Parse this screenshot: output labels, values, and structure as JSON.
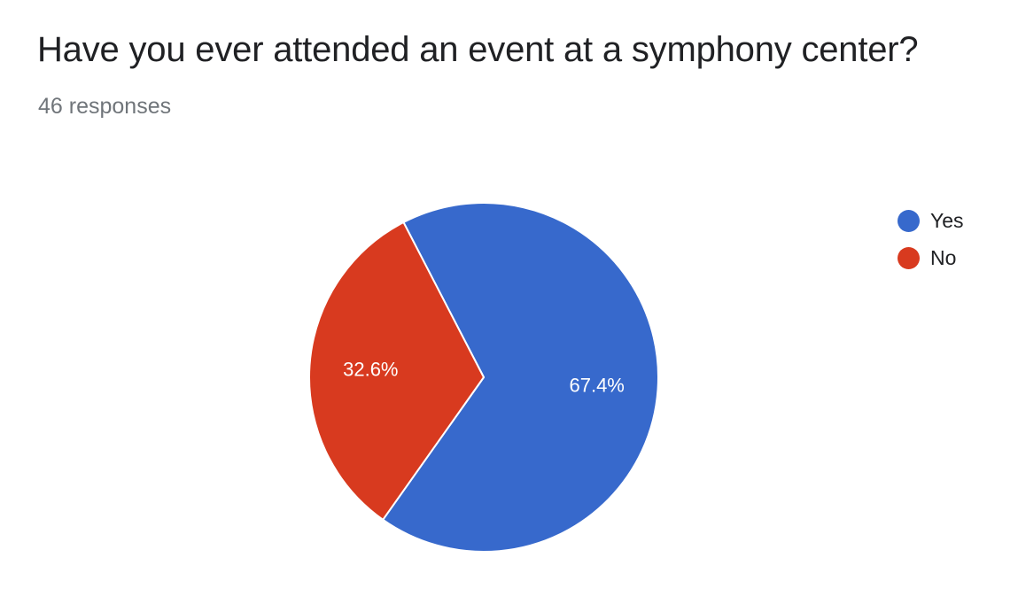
{
  "title": "Have you ever attended an event at a symphony center?",
  "subtitle": "46 responses",
  "chart_data": {
    "type": "pie",
    "title": "Have you ever attended an event at a symphony center?",
    "subtitle": "46 responses",
    "slices": [
      {
        "name": "Yes",
        "value": 67.4,
        "label": "67.4%",
        "color": "#3769cc"
      },
      {
        "name": "No",
        "value": 32.6,
        "label": "32.6%",
        "color": "#d83a1f"
      }
    ],
    "legend_position": "right"
  }
}
